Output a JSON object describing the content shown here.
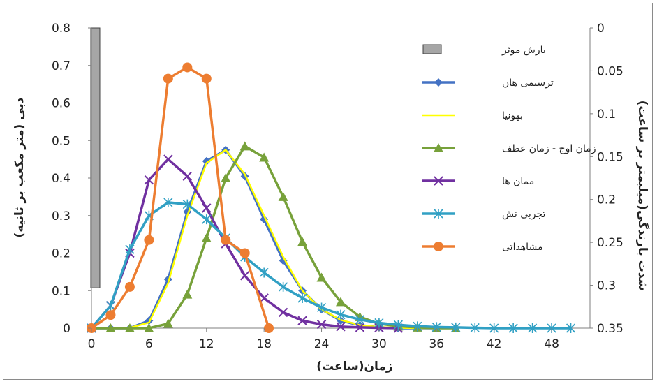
{
  "chart_data": {
    "type": "line",
    "title": "",
    "xlabel": "زمان(ساعت)",
    "ylabel": "دبی (متر مکعب بر ثانیه)",
    "y2label": "شدت بارندگی(میلیمتر بر ساعت)",
    "xlim": [
      0,
      52
    ],
    "ylim": [
      0,
      0.8
    ],
    "y2lim": [
      0,
      0.35
    ],
    "y2_reversed": true,
    "x_ticks": [
      0,
      6,
      12,
      18,
      24,
      30,
      36,
      42,
      48
    ],
    "y_ticks": [
      "0",
      "0.1",
      "0.2",
      "0.3",
      "0.4",
      "0.5",
      "0.6",
      "0.7",
      "0.8"
    ],
    "y2_ticks": [
      "0",
      "0.05",
      "0.1",
      "0.15",
      "0.2",
      "0.25",
      "0.3",
      "0.35"
    ],
    "grid": false,
    "legend_position": "right",
    "rainfall": {
      "name": "بارش موثر",
      "x_start": 0,
      "x_end": 0.8,
      "intensity": 0.303,
      "color": "#a6a6a6"
    },
    "series": [
      {
        "name": "ترسیمی هان",
        "color": "#4472c4",
        "marker": "diamond",
        "x": [
          0,
          2,
          4,
          6,
          8,
          10,
          12,
          14,
          16,
          18,
          20,
          22,
          24,
          26,
          28,
          30,
          32,
          34,
          36
        ],
        "y": [
          0,
          0,
          0,
          0.02,
          0.13,
          0.31,
          0.445,
          0.475,
          0.405,
          0.29,
          0.18,
          0.1,
          0.05,
          0.02,
          0.008,
          0.002,
          0,
          0,
          0
        ]
      },
      {
        "name": "بهونیا",
        "color": "#ffff00",
        "marker": "none",
        "x": [
          0,
          2,
          4,
          6,
          8,
          10,
          12,
          14,
          16,
          18,
          20,
          22,
          24,
          26,
          28,
          30,
          32,
          34,
          36
        ],
        "y": [
          0,
          0,
          0.001,
          0.015,
          0.12,
          0.3,
          0.44,
          0.475,
          0.41,
          0.3,
          0.19,
          0.1,
          0.05,
          0.022,
          0.008,
          0.003,
          0.001,
          0,
          0
        ]
      },
      {
        "name": "زمان اوج - زمان عطف",
        "color": "#77a13a",
        "marker": "triangle",
        "x": [
          0,
          2,
          4,
          6,
          8,
          10,
          12,
          14,
          16,
          18,
          20,
          22,
          24,
          26,
          28,
          30,
          32,
          34,
          36,
          38
        ],
        "y": [
          0,
          0,
          0,
          0,
          0.012,
          0.09,
          0.24,
          0.4,
          0.485,
          0.455,
          0.35,
          0.23,
          0.135,
          0.07,
          0.03,
          0.012,
          0.005,
          0.002,
          0,
          0
        ]
      },
      {
        "name": "ممان ها",
        "color": "#7030a0",
        "marker": "x",
        "x": [
          0,
          2,
          4,
          6,
          8,
          10,
          12,
          14,
          16,
          18,
          20,
          22,
          24,
          26,
          28,
          30,
          32
        ],
        "y": [
          0,
          0.06,
          0.2,
          0.395,
          0.45,
          0.405,
          0.32,
          0.225,
          0.14,
          0.08,
          0.042,
          0.02,
          0.01,
          0.004,
          0.002,
          0.001,
          0
        ]
      },
      {
        "name": "تجربی نش",
        "color": "#31a0c4",
        "marker": "star",
        "x": [
          0,
          2,
          4,
          6,
          8,
          10,
          12,
          14,
          16,
          18,
          20,
          22,
          24,
          26,
          28,
          30,
          32,
          34,
          36,
          38,
          40,
          42,
          44,
          46,
          48,
          50
        ],
        "y": [
          0,
          0.06,
          0.21,
          0.3,
          0.335,
          0.33,
          0.29,
          0.24,
          0.19,
          0.148,
          0.11,
          0.08,
          0.055,
          0.036,
          0.023,
          0.014,
          0.009,
          0.005,
          0.003,
          0.002,
          0.001,
          0,
          0,
          0,
          0,
          0
        ]
      },
      {
        "name": "مشاهداتی",
        "color": "#ed7d31",
        "marker": "circle",
        "x": [
          0,
          2,
          4,
          6,
          8,
          10,
          12,
          14,
          16,
          18.5
        ],
        "y": [
          0,
          0.035,
          0.11,
          0.235,
          0.665,
          0.695,
          0.665,
          0.235,
          0.2,
          0
        ]
      }
    ]
  }
}
